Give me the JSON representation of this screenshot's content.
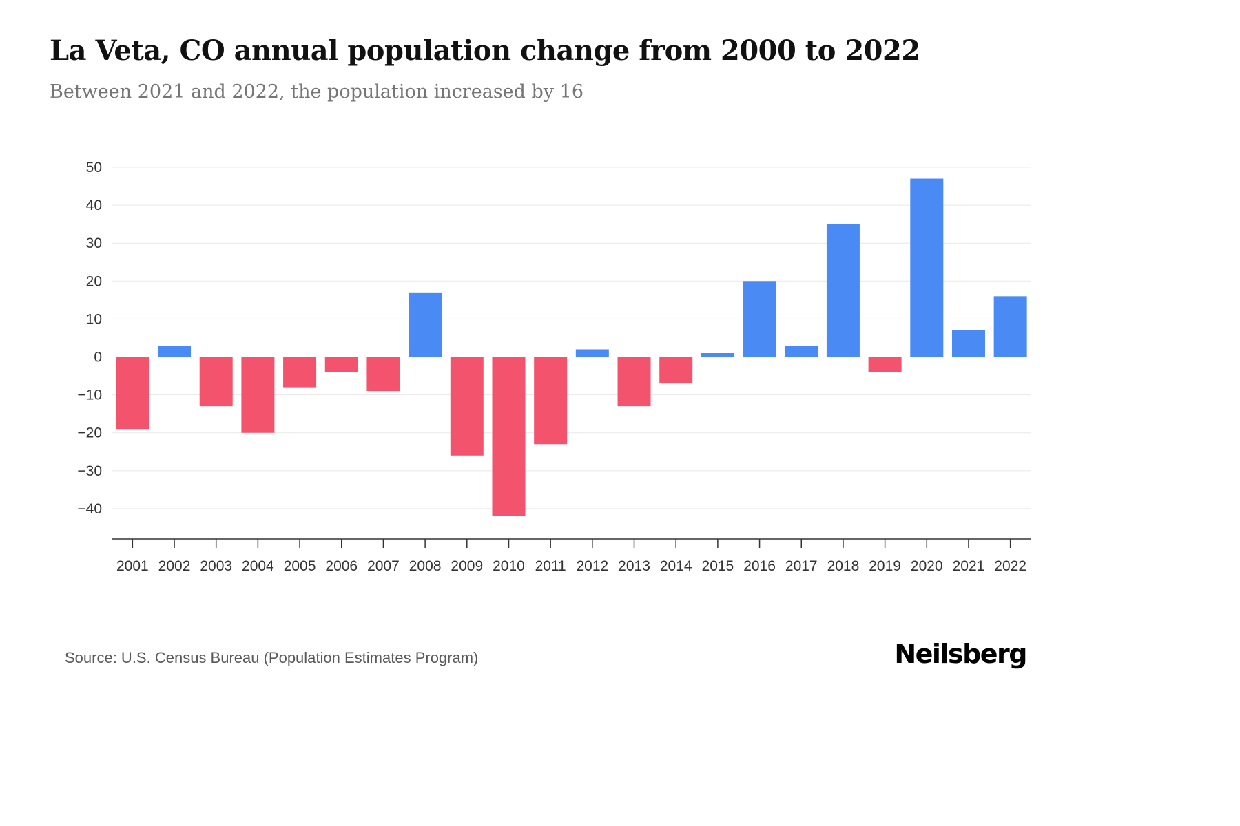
{
  "header": {
    "title": "La Veta, CO annual population change from 2000 to 2022",
    "subtitle": "Between 2021 and 2022, the population increased by 16"
  },
  "chart_data": {
    "type": "bar",
    "title": "La Veta, CO annual population change from 2000 to 2022",
    "subtitle": "Between 2021 and 2022, the population increased by 16",
    "xlabel": "",
    "ylabel": "",
    "categories": [
      2001,
      2002,
      2003,
      2004,
      2005,
      2006,
      2007,
      2008,
      2009,
      2010,
      2011,
      2012,
      2013,
      2014,
      2015,
      2016,
      2017,
      2018,
      2019,
      2020,
      2021,
      2022
    ],
    "values": [
      -19,
      3,
      -13,
      -20,
      -8,
      -4,
      -9,
      17,
      -26,
      -42,
      -23,
      2,
      -13,
      -7,
      1,
      20,
      3,
      35,
      -4,
      47,
      7,
      16
    ],
    "yticks": [
      -40,
      -30,
      -20,
      -10,
      0,
      10,
      20,
      30,
      40,
      50
    ],
    "ylim": [
      -48,
      50
    ],
    "grid": true,
    "legend_position": "none",
    "colors": {
      "positive": "#4a8af5",
      "negative": "#f4536e",
      "gridline": "#e8e8e8",
      "axis": "#333333"
    }
  },
  "footer": {
    "source": "Source: U.S. Census Bureau (Population Estimates Program)",
    "brand": "Neilsberg"
  }
}
